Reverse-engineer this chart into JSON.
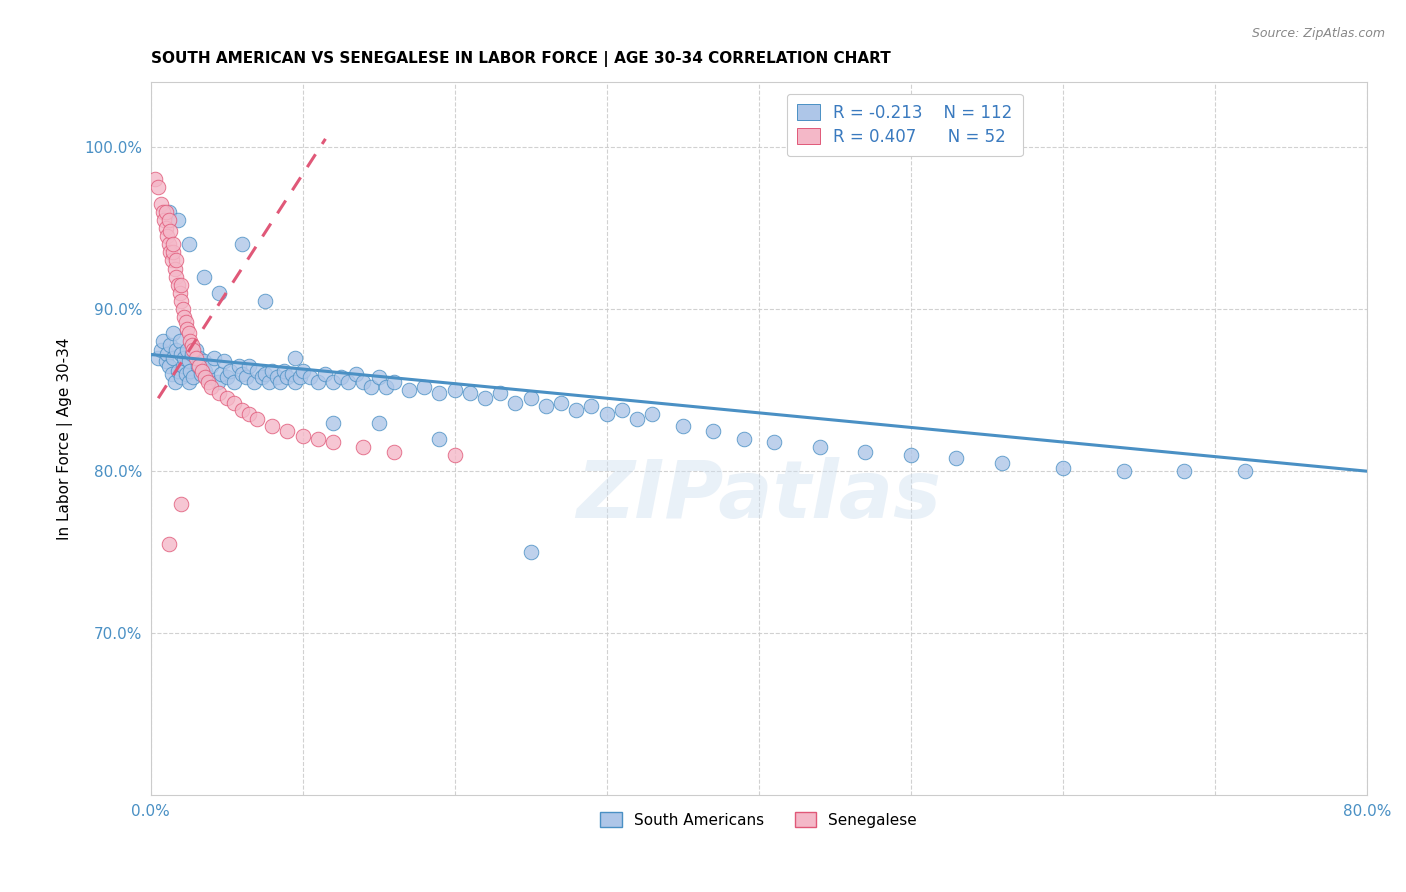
{
  "title": "SOUTH AMERICAN VS SENEGALESE IN LABOR FORCE | AGE 30-34 CORRELATION CHART",
  "source": "Source: ZipAtlas.com",
  "ylabel": "In Labor Force | Age 30-34",
  "xlim": [
    0.0,
    0.8
  ],
  "ylim": [
    0.6,
    1.04
  ],
  "xticks": [
    0.0,
    0.1,
    0.2,
    0.3,
    0.4,
    0.5,
    0.6,
    0.7,
    0.8
  ],
  "xticklabels": [
    "0.0%",
    "",
    "",
    "",
    "",
    "",
    "",
    "",
    "80.0%"
  ],
  "yticks": [
    0.7,
    0.8,
    0.9,
    1.0
  ],
  "yticklabels": [
    "70.0%",
    "80.0%",
    "90.0%",
    "100.0%"
  ],
  "watermark": "ZIPatlas",
  "legend_r_blue": "R = -0.213",
  "legend_n_blue": "N = 112",
  "legend_r_pink": "R = 0.407",
  "legend_n_pink": "N = 52",
  "blue_color": "#aec6e8",
  "pink_color": "#f4b8c8",
  "trend_blue_color": "#4a90c4",
  "trend_pink_color": "#e05878",
  "blue_trend_x": [
    0.0,
    0.8
  ],
  "blue_trend_y": [
    0.872,
    0.8
  ],
  "pink_trend_x": [
    0.005,
    0.115
  ],
  "pink_trend_y": [
    0.845,
    1.005
  ],
  "blue_points_x": [
    0.005,
    0.007,
    0.008,
    0.01,
    0.011,
    0.012,
    0.013,
    0.014,
    0.015,
    0.015,
    0.016,
    0.017,
    0.018,
    0.019,
    0.02,
    0.02,
    0.021,
    0.022,
    0.023,
    0.024,
    0.025,
    0.025,
    0.026,
    0.027,
    0.028,
    0.03,
    0.031,
    0.032,
    0.033,
    0.035,
    0.036,
    0.038,
    0.04,
    0.042,
    0.044,
    0.046,
    0.048,
    0.05,
    0.052,
    0.055,
    0.058,
    0.06,
    0.063,
    0.065,
    0.068,
    0.07,
    0.073,
    0.075,
    0.078,
    0.08,
    0.083,
    0.085,
    0.088,
    0.09,
    0.093,
    0.095,
    0.098,
    0.1,
    0.105,
    0.11,
    0.115,
    0.12,
    0.125,
    0.13,
    0.135,
    0.14,
    0.145,
    0.15,
    0.155,
    0.16,
    0.17,
    0.18,
    0.19,
    0.2,
    0.21,
    0.22,
    0.23,
    0.24,
    0.25,
    0.26,
    0.27,
    0.28,
    0.29,
    0.3,
    0.31,
    0.32,
    0.33,
    0.35,
    0.37,
    0.39,
    0.41,
    0.44,
    0.47,
    0.5,
    0.53,
    0.56,
    0.6,
    0.64,
    0.68,
    0.72,
    0.012,
    0.018,
    0.025,
    0.035,
    0.045,
    0.06,
    0.075,
    0.095,
    0.12,
    0.15,
    0.19,
    0.25
  ],
  "blue_points_y": [
    0.87,
    0.875,
    0.88,
    0.868,
    0.872,
    0.865,
    0.878,
    0.86,
    0.885,
    0.87,
    0.855,
    0.875,
    0.862,
    0.88,
    0.858,
    0.872,
    0.865,
    0.87,
    0.86,
    0.875,
    0.855,
    0.868,
    0.862,
    0.872,
    0.858,
    0.875,
    0.865,
    0.87,
    0.86,
    0.868,
    0.862,
    0.858,
    0.865,
    0.87,
    0.855,
    0.86,
    0.868,
    0.858,
    0.862,
    0.855,
    0.865,
    0.86,
    0.858,
    0.865,
    0.855,
    0.862,
    0.858,
    0.86,
    0.855,
    0.862,
    0.858,
    0.855,
    0.862,
    0.858,
    0.86,
    0.855,
    0.858,
    0.862,
    0.858,
    0.855,
    0.86,
    0.855,
    0.858,
    0.855,
    0.86,
    0.855,
    0.852,
    0.858,
    0.852,
    0.855,
    0.85,
    0.852,
    0.848,
    0.85,
    0.848,
    0.845,
    0.848,
    0.842,
    0.845,
    0.84,
    0.842,
    0.838,
    0.84,
    0.835,
    0.838,
    0.832,
    0.835,
    0.828,
    0.825,
    0.82,
    0.818,
    0.815,
    0.812,
    0.81,
    0.808,
    0.805,
    0.802,
    0.8,
    0.8,
    0.8,
    0.96,
    0.955,
    0.94,
    0.92,
    0.91,
    0.94,
    0.905,
    0.87,
    0.83,
    0.83,
    0.82,
    0.75
  ],
  "pink_points_x": [
    0.003,
    0.005,
    0.007,
    0.008,
    0.009,
    0.01,
    0.01,
    0.011,
    0.012,
    0.012,
    0.013,
    0.013,
    0.014,
    0.015,
    0.015,
    0.016,
    0.017,
    0.017,
    0.018,
    0.019,
    0.02,
    0.02,
    0.021,
    0.022,
    0.023,
    0.024,
    0.025,
    0.026,
    0.027,
    0.028,
    0.03,
    0.032,
    0.034,
    0.036,
    0.038,
    0.04,
    0.045,
    0.05,
    0.055,
    0.06,
    0.065,
    0.07,
    0.08,
    0.09,
    0.1,
    0.11,
    0.12,
    0.14,
    0.16,
    0.2,
    0.012,
    0.02
  ],
  "pink_points_y": [
    0.98,
    0.975,
    0.965,
    0.96,
    0.955,
    0.95,
    0.96,
    0.945,
    0.94,
    0.955,
    0.935,
    0.948,
    0.93,
    0.935,
    0.94,
    0.925,
    0.92,
    0.93,
    0.915,
    0.91,
    0.905,
    0.915,
    0.9,
    0.895,
    0.892,
    0.888,
    0.885,
    0.88,
    0.878,
    0.875,
    0.87,
    0.865,
    0.862,
    0.858,
    0.855,
    0.852,
    0.848,
    0.845,
    0.842,
    0.838,
    0.835,
    0.832,
    0.828,
    0.825,
    0.822,
    0.82,
    0.818,
    0.815,
    0.812,
    0.81,
    0.755,
    0.78
  ]
}
